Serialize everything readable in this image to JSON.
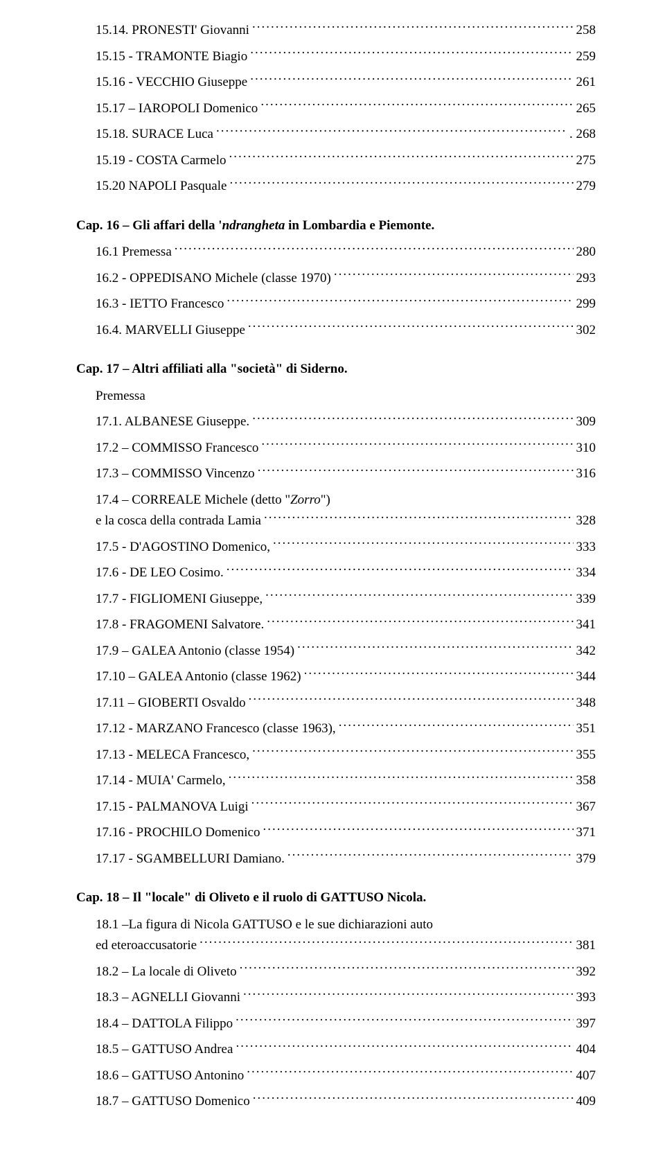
{
  "section_top": [
    {
      "label": "15.14. PRONESTI' Giovanni",
      "page": "258"
    },
    {
      "label": "15.15 - TRAMONTE Biagio",
      "page": "259"
    },
    {
      "label": "15.16 - VECCHIO Giuseppe",
      "page": "261"
    },
    {
      "label": "15.17 – IAROPOLI Domenico",
      "page": "265"
    },
    {
      "label": "15.18. SURACE Luca",
      "page": ". 268"
    },
    {
      "label": "15.19 - COSTA Carmelo",
      "page": "275"
    },
    {
      "label": "15.20 NAPOLI Pasquale",
      "page": "279"
    }
  ],
  "chapter16": {
    "heading_prefix": "Cap. 16 – Gli affari della '",
    "heading_italic": "ndrangheta",
    "heading_suffix": " in Lombardia e Piemonte.",
    "items": [
      {
        "label": "16.1 Premessa",
        "page": "280"
      },
      {
        "label": "16.2 - OPPEDISANO Michele (classe 1970)",
        "page": "293"
      },
      {
        "label": "16.3 - IETTO Francesco",
        "page": "299"
      },
      {
        "label": "16.4. MARVELLI Giuseppe",
        "page": "302"
      }
    ]
  },
  "chapter17": {
    "heading": "Cap. 17 – Altri affiliati alla \"società\" di Siderno.",
    "premessa": "Premessa",
    "items": [
      {
        "label": "17.1. ALBANESE Giuseppe.",
        "page": "309"
      },
      {
        "label": "17.2 – COMMISSO Francesco",
        "page": "310"
      },
      {
        "label": "17.3 – COMMISSO Vincenzo",
        "page": "316"
      },
      {
        "label_a": "17.4 – CORREALE Michele (detto \"",
        "label_italic": "Zorro",
        "label_b": "\")",
        "wrap": true
      },
      {
        "label": "e la cosca della contrada Lamia",
        "page": "328"
      },
      {
        "label": "17.5 - D'AGOSTINO Domenico,",
        "page": "333"
      },
      {
        "label": "17.6 - DE LEO Cosimo.",
        "page": "334"
      },
      {
        "label": "17.7 - FIGLIOMENI Giuseppe,",
        "page": " 339"
      },
      {
        "label": "17.8 - FRAGOMENI Salvatore.",
        "page": "341"
      },
      {
        "label": "17.9 – GALEA Antonio (classe 1954)",
        "page": "342"
      },
      {
        "label": "17.10 – GALEA Antonio (classe 1962)",
        "page": " 344"
      },
      {
        "label": "17.11 – GIOBERTI Osvaldo",
        "page": " 348"
      },
      {
        "label": "17.12 - MARZANO Francesco (classe 1963),",
        "page": "351"
      },
      {
        "label": "17.13 - MELECA Francesco,",
        "page": "  355"
      },
      {
        "label": "17.14 - MUIA' Carmelo,",
        "page": "  358"
      },
      {
        "label": "17.15 - PALMANOVA Luigi",
        "page": "  367"
      },
      {
        "label": "17.16 - PROCHILO Domenico",
        "page": "  371"
      },
      {
        "label": "17.17 - SGAMBELLURI Damiano.",
        "page": "  379"
      }
    ]
  },
  "chapter18": {
    "heading": "Cap. 18 – Il \"locale\" di Oliveto e il ruolo di GATTUSO Nicola.",
    "wrap_line": "18.1 –La figura di Nicola GATTUSO e le sue dichiarazioni auto",
    "items": [
      {
        "label": "ed eteroaccusatorie",
        "page": "  381"
      },
      {
        "label": "18.2 – La locale di Oliveto",
        "page": "  392"
      },
      {
        "label": "18.3 – AGNELLI Giovanni",
        "page": "  393"
      },
      {
        "label": "18.4 – DATTOLA Filippo",
        "page": "   397"
      },
      {
        "label": "18.5 – GATTUSO Andrea",
        "page": "   404"
      },
      {
        "label": "18.6 – GATTUSO Antonino",
        "page": "  407"
      },
      {
        "label": "18.7 – GATTUSO Domenico",
        "page": "  409"
      }
    ]
  }
}
